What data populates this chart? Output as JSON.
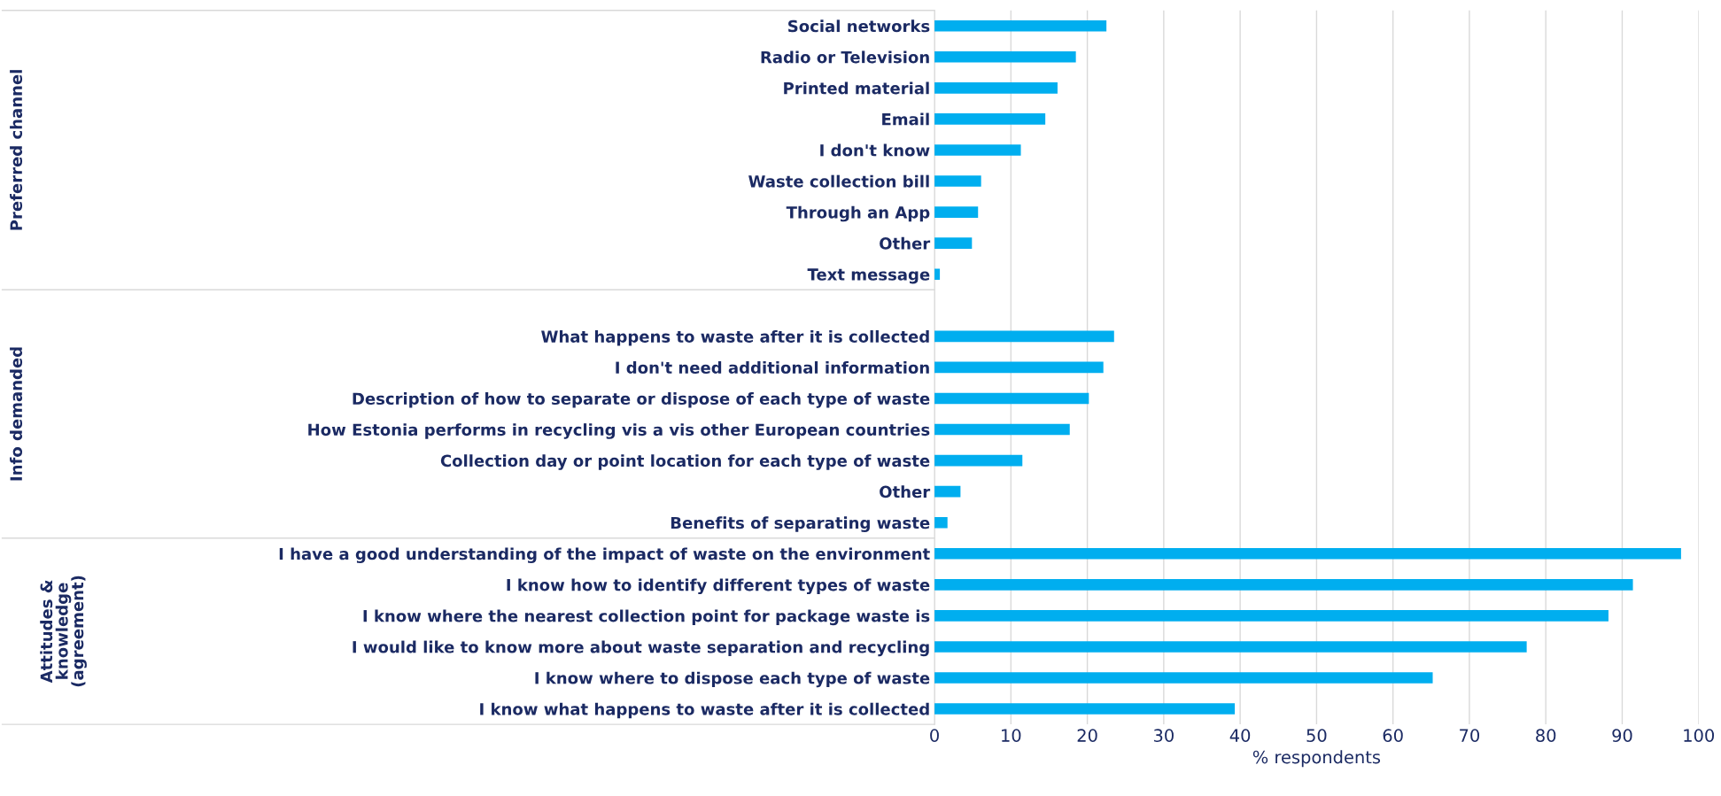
{
  "chart_data": {
    "type": "bar",
    "orientation": "horizontal",
    "categories": [
      "Social networks",
      "Radio or Television",
      "Printed material",
      "Email",
      "I don't know",
      "Waste collection bill",
      "Through an App",
      "Other",
      "Text message",
      null,
      "What happens to waste after it is collected",
      "I don't need additional information",
      "Description of how to separate or dispose of each type of waste",
      "How Estonia performs in recycling vis a vis other European countries",
      "Collection day or point location for each type of waste",
      "Other",
      "Benefits of separating waste",
      "I have a good understanding of the impact of waste on the environment",
      "I know how to identify different types of waste",
      "I know where the nearest collection point for package waste is",
      "I would like to know more about waste separation and recycling",
      "I know where to dispose each type of waste",
      "I know what happens to waste after it is collected"
    ],
    "values": [
      22.5,
      18.5,
      16.1,
      14.5,
      11.3,
      6.1,
      5.7,
      4.9,
      0.7,
      null,
      23.5,
      22.1,
      20.2,
      17.7,
      11.5,
      3.4,
      1.7,
      97.7,
      91.4,
      88.2,
      77.5,
      65.2,
      39.3
    ],
    "color": "#00aeef",
    "xlim": [
      0,
      100
    ],
    "xticks": [
      0,
      10,
      20,
      30,
      40,
      50,
      60,
      70,
      80,
      90,
      100
    ],
    "xlabel": "% respondents",
    "grid": "x",
    "annotations": [
      "Preferred channel",
      "Info demanded",
      "Attitudes &\nknowledge\n(agreement)"
    ]
  }
}
